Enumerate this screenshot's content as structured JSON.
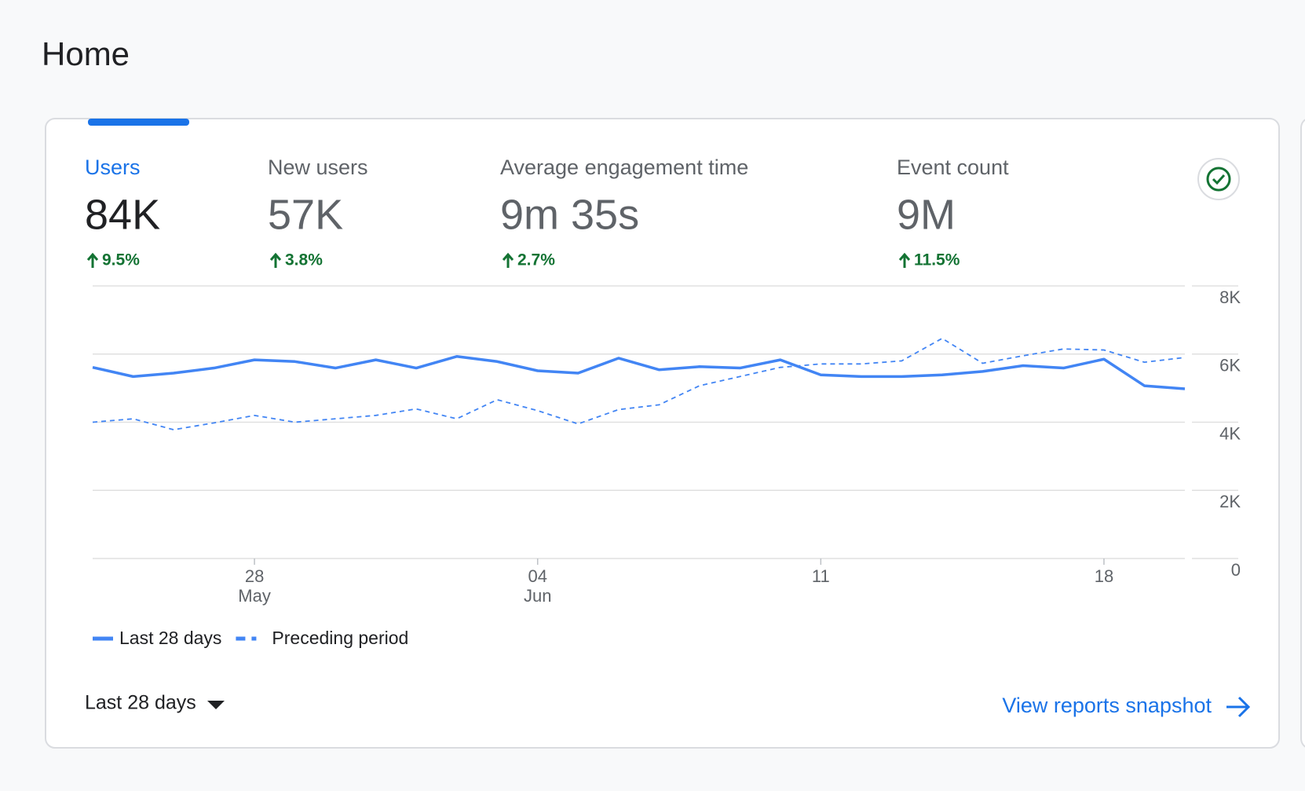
{
  "header": {
    "title": "Home"
  },
  "metrics": [
    {
      "label": "Users",
      "value": "84K",
      "change": "9.5%"
    },
    {
      "label": "New users",
      "value": "57K",
      "change": "3.8%"
    },
    {
      "label": "Average engagement time",
      "value": "9m 35s",
      "change": "2.7%"
    },
    {
      "label": "Event count",
      "value": "9M",
      "change": "11.5%"
    }
  ],
  "chart_data": {
    "type": "line",
    "categories": [
      null,
      null,
      null,
      null,
      "28",
      null,
      null,
      null,
      null,
      null,
      null,
      "04",
      null,
      null,
      null,
      null,
      null,
      null,
      "11",
      null,
      null,
      null,
      null,
      null,
      null,
      "18",
      null,
      null
    ],
    "category_sublabels": [
      null,
      null,
      null,
      null,
      "May",
      null,
      null,
      null,
      null,
      null,
      null,
      "Jun",
      null,
      null,
      null,
      null,
      null,
      null,
      null,
      null,
      null,
      null,
      null,
      null,
      null,
      null,
      null,
      null
    ],
    "series": [
      {
        "name": "Last 28 days",
        "color": "#4285f4",
        "style": "solid",
        "values": [
          5610,
          5340,
          5440,
          5590,
          5830,
          5780,
          5590,
          5830,
          5590,
          5930,
          5780,
          5510,
          5440,
          5880,
          5540,
          5630,
          5590,
          5830,
          5390,
          5340,
          5340,
          5390,
          5490,
          5660,
          5590,
          5850,
          5070,
          4980
        ]
      },
      {
        "name": "Preceding period",
        "color": "#4285f4",
        "style": "dashed",
        "values": [
          4000,
          4100,
          3780,
          3980,
          4200,
          4000,
          4100,
          4200,
          4390,
          4100,
          4660,
          4340,
          3950,
          4370,
          4510,
          5070,
          5340,
          5610,
          5710,
          5710,
          5800,
          6460,
          5730,
          5950,
          6150,
          6120,
          5760,
          5900
        ]
      }
    ],
    "ylim": [
      0,
      8000
    ],
    "yticks": [
      0,
      {
        "value": 2000,
        "label": "2K"
      },
      {
        "value": 4000,
        "label": "4K"
      },
      {
        "value": 6000,
        "label": "6K"
      },
      {
        "value": 8000,
        "label": "8K"
      }
    ],
    "grid": true,
    "legend": "bottom-left"
  },
  "footer": {
    "date_range": "Last 28 days",
    "link": "View reports snapshot"
  }
}
